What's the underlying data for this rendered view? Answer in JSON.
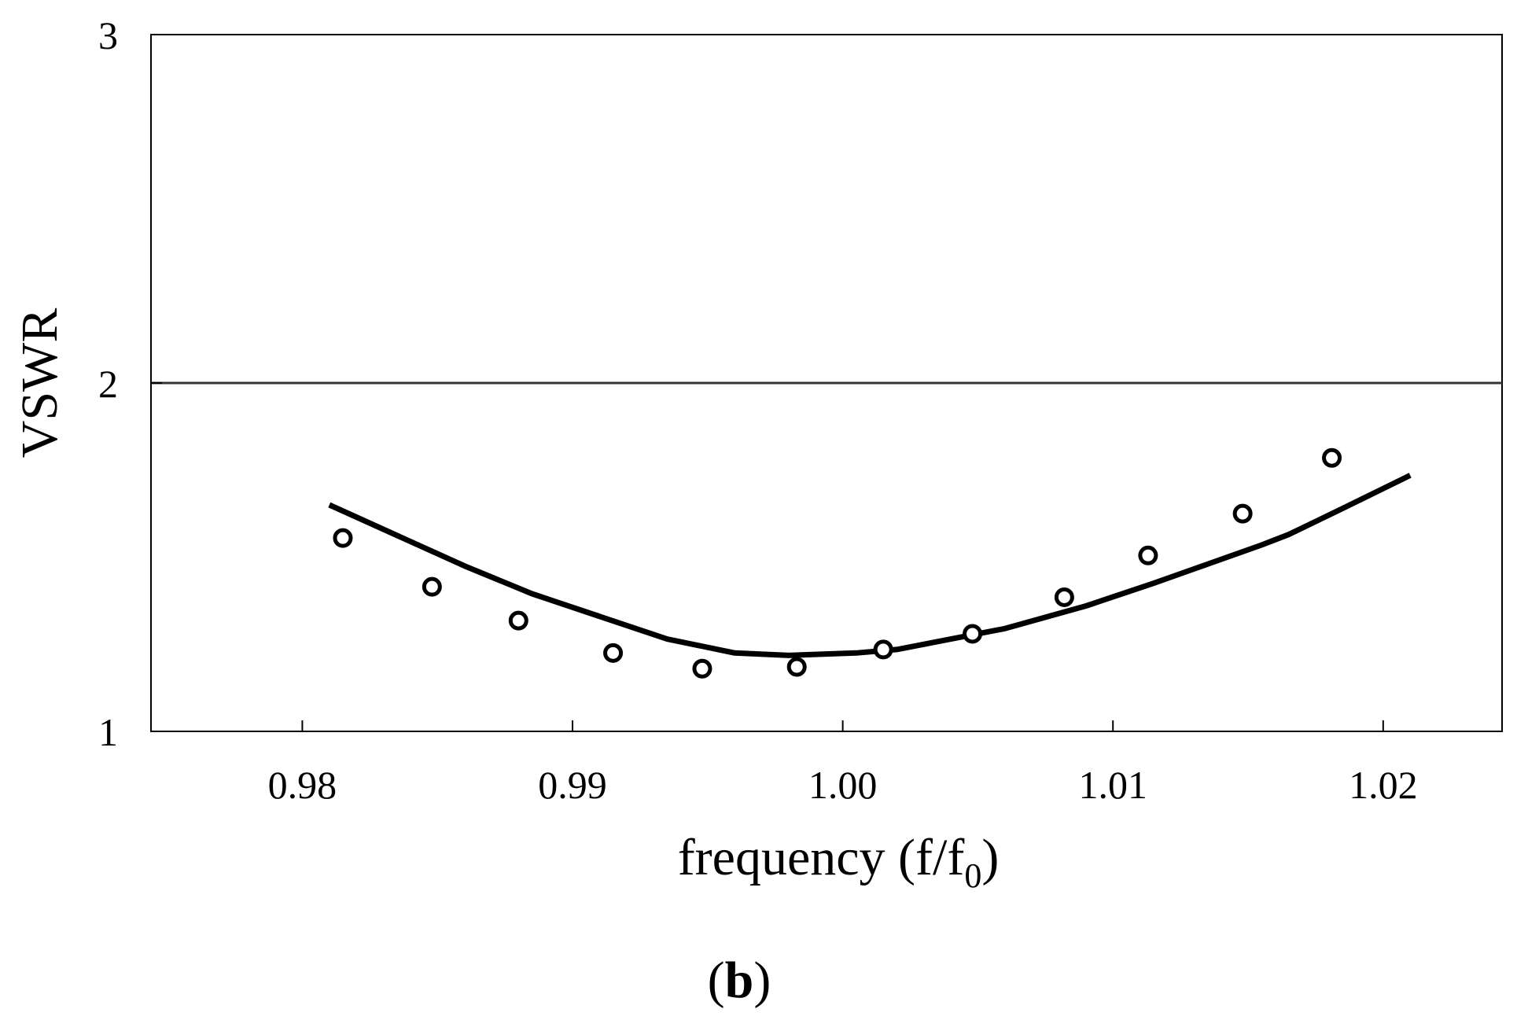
{
  "chart_data": {
    "type": "line",
    "xlabel": "frequency (f/f",
    "xlabel_subscript": "0",
    "xlabel_suffix": ")",
    "ylabel": "VSWR",
    "caption": {
      "open": "(",
      "letter": "b",
      "close": ")"
    },
    "xlim": [
      0.9744,
      1.0244
    ],
    "ylim": [
      1,
      3
    ],
    "xticks": [
      0.98,
      0.99,
      1.0,
      1.01,
      1.02
    ],
    "xtick_labels": [
      "0.98",
      "0.99",
      "1.00",
      "1.01",
      "1.02"
    ],
    "yticks": [
      1,
      2,
      3
    ],
    "ytick_labels": [
      "1",
      "2",
      "3"
    ],
    "grid": false,
    "reference_line": {
      "y": 2.0,
      "style": "thin horizontal line"
    },
    "series": [
      {
        "style": "solid line",
        "x": [
          0.981,
          0.986,
          0.9885,
          0.9935,
          0.996,
          0.998,
          1.0005,
          1.002,
          1.004,
          1.006,
          1.009,
          1.0115,
          1.0155,
          1.0165,
          1.0185,
          1.021
        ],
        "y": [
          1.65,
          1.475,
          1.395,
          1.265,
          1.225,
          1.218,
          1.225,
          1.235,
          1.265,
          1.295,
          1.36,
          1.425,
          1.535,
          1.565,
          1.64,
          1.735
        ]
      },
      {
        "style": "open circle markers",
        "x": [
          0.9815,
          0.9848,
          0.988,
          0.9915,
          0.9948,
          0.9983,
          1.0015,
          1.0048,
          1.0082,
          1.0113,
          1.0148,
          1.0181
        ],
        "y": [
          1.555,
          1.415,
          1.318,
          1.225,
          1.18,
          1.185,
          1.235,
          1.28,
          1.385,
          1.505,
          1.625,
          1.785
        ]
      }
    ],
    "colors": {
      "line": "#000000",
      "markers": "#000000",
      "reference": "#333333",
      "axes": "#000000"
    }
  }
}
